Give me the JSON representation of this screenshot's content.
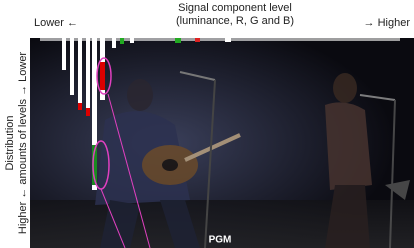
{
  "header": {
    "title": "Signal component level",
    "subtitle": "(luminance, R, G and B)",
    "left": "Lower ←",
    "right": "→ Higher"
  },
  "side": {
    "title": "Distribution",
    "axis": "Higher ← amounts of levels → Lower"
  },
  "overlay": {
    "label": "PGM"
  }
}
